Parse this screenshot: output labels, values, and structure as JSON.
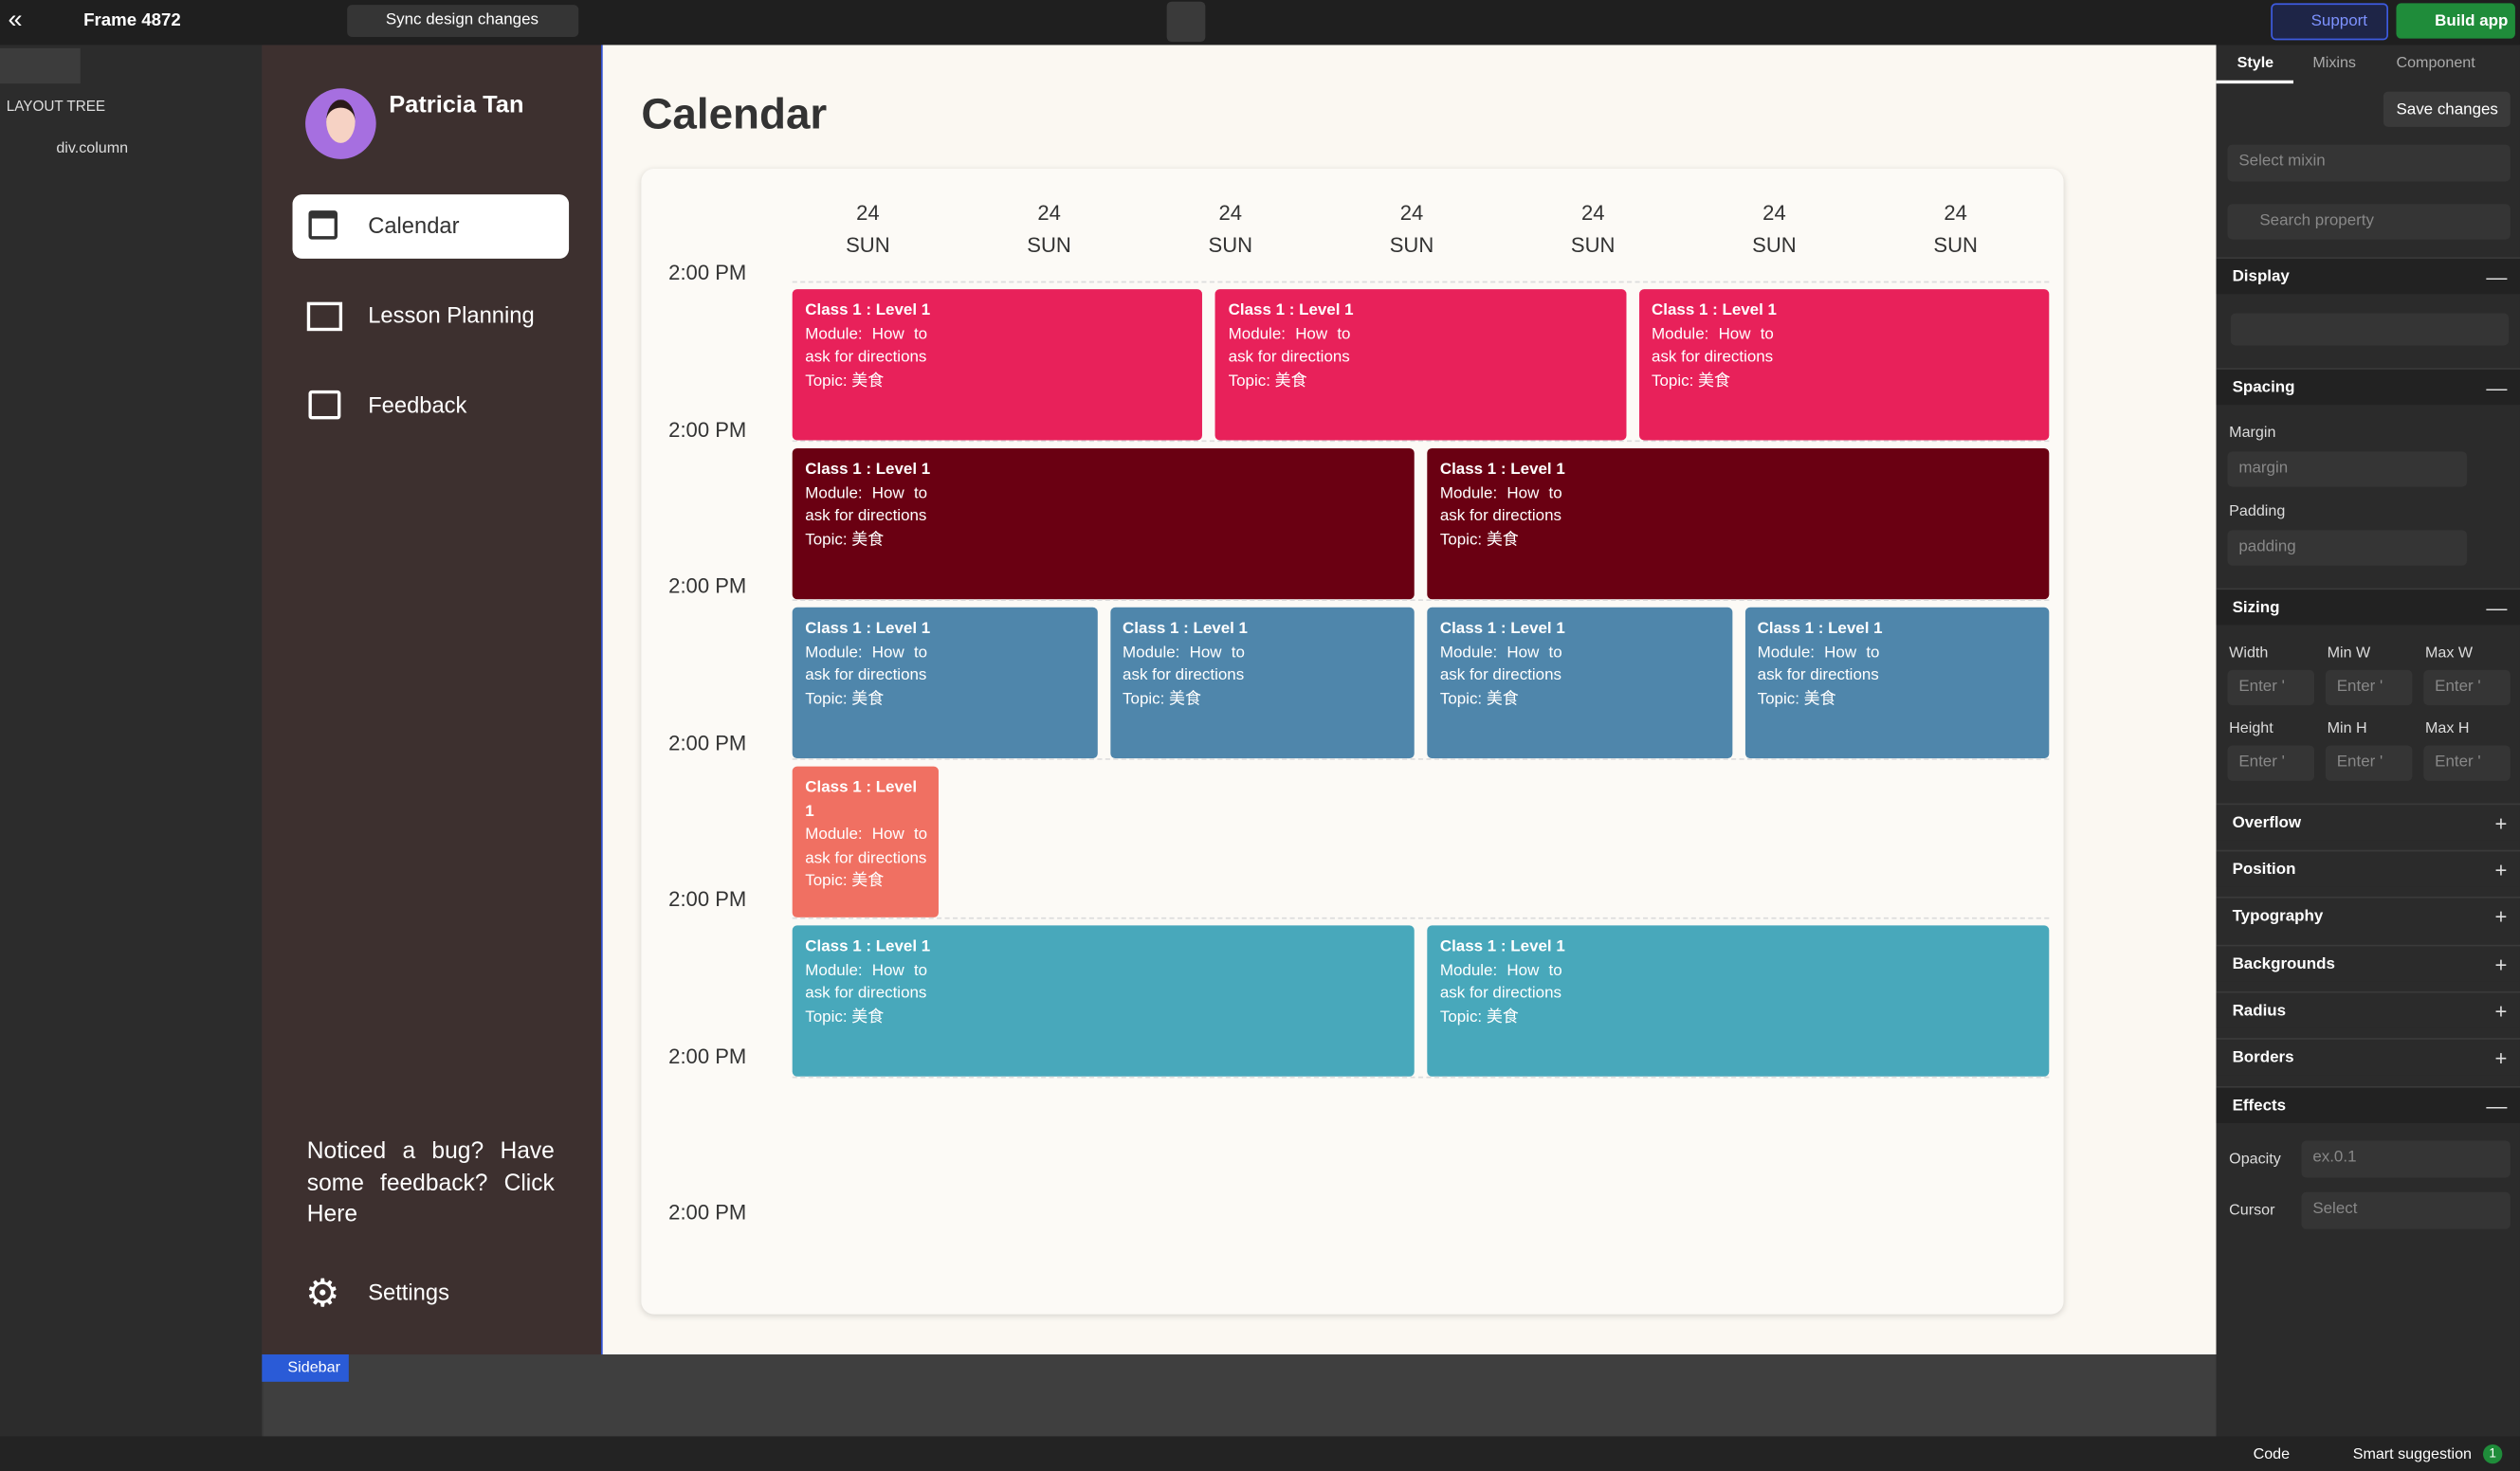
{
  "topbar": {
    "frame": "Frame 4872",
    "sync": "Sync design changes",
    "support": "Support",
    "build": "Build app"
  },
  "left_panel": {
    "title": "LAYOUT TREE",
    "tree": [
      "div.column"
    ]
  },
  "sidebar": {
    "user": "Patricia Tan",
    "nav": [
      "Calendar",
      "Lesson Planning",
      "Feedback"
    ],
    "feedback": "Noticed a bug? Have some feedback? Click Here",
    "settings": "Settings",
    "label": "Sidebar"
  },
  "calendar": {
    "title": "Calendar",
    "days": [
      {
        "date": "24",
        "weekday": "SUN"
      },
      {
        "date": "24",
        "weekday": "SUN"
      },
      {
        "date": "24",
        "weekday": "SUN"
      },
      {
        "date": "24",
        "weekday": "SUN"
      },
      {
        "date": "24",
        "weekday": "SUN"
      },
      {
        "date": "24",
        "weekday": "SUN"
      },
      {
        "date": "24",
        "weekday": "SUN"
      }
    ],
    "times": [
      "2:00 PM",
      "2:00 PM",
      "2:00 PM",
      "2:00 PM",
      "2:00 PM",
      "2:00 PM",
      "2:00 PM"
    ],
    "rows": [
      {
        "color": "#e8215a",
        "events": [
          {
            "title": "Class 1 : Level 1",
            "module": "Module: How to ask for directions",
            "topic": "Topic: 美食"
          },
          {
            "title": "Class 1 : Level 1",
            "module": "Module: How to ask for directions",
            "topic": "Topic: 美食"
          },
          {
            "title": "Class 1 : Level 1",
            "module": "Module: How to ask for directions",
            "topic": "Topic: 美食"
          }
        ]
      },
      {
        "color": "#6a0012",
        "events": [
          {
            "title": "Class 1 : Level 1",
            "module": "Module: How to ask for directions",
            "topic": "Topic: 美食"
          },
          {
            "title": "Class 1 : Level 1",
            "module": "Module: How to ask for directions",
            "topic": "Topic: 美食"
          }
        ]
      },
      {
        "color": "#4f86ab",
        "events": [
          {
            "title": "Class 1 : Level 1",
            "module": "Module: How to ask for directions",
            "topic": "Topic: 美食"
          },
          {
            "title": "Class 1 : Level 1",
            "module": "Module: How to ask for directions",
            "topic": "Topic: 美食"
          },
          {
            "title": "Class 1 : Level 1",
            "module": "Module: How to ask for directions",
            "topic": "Topic: 美食"
          },
          {
            "title": "Class 1 : Level 1",
            "module": "Module: How to ask for directions",
            "topic": "Topic: 美食"
          }
        ]
      },
      {
        "color": "#f07062",
        "events": [
          {
            "title": "Class 1 : Level 1",
            "module": "Module: How to ask for directions",
            "topic": "Topic: 美食"
          }
        ]
      },
      {
        "color": "#48a8bb",
        "events": [
          {
            "title": "Class 1 : Level 1",
            "module": "Module: How to ask for directions",
            "topic": "Topic: 美食"
          },
          {
            "title": "Class 1 : Level 1",
            "module": "Module: How to ask for directions",
            "topic": "Topic: 美食"
          }
        ]
      }
    ]
  },
  "style_panel": {
    "tabs": [
      "Style",
      "Mixins",
      "Component"
    ],
    "save": "Save changes",
    "mixin": "Select mixin",
    "search": "Search property",
    "sections": [
      "Display",
      "Spacing",
      "Sizing",
      "Overflow",
      "Position",
      "Typography",
      "Backgrounds",
      "Radius",
      "Borders",
      "Effects"
    ],
    "margin": {
      "label": "Margin",
      "placeholder": "margin"
    },
    "padding": {
      "label": "Padding",
      "placeholder": "padding"
    },
    "sizing_labels": [
      "Width",
      "Min W",
      "Max W",
      "Height",
      "Min H",
      "Max H"
    ],
    "enter": "Enter '",
    "opacity": {
      "label": "Opacity",
      "placeholder": "ex.0.1"
    },
    "cursor": {
      "label": "Cursor",
      "placeholder": "Select"
    }
  },
  "bottom": {
    "code": "Code",
    "smart": "Smart suggestion",
    "count": "1"
  }
}
